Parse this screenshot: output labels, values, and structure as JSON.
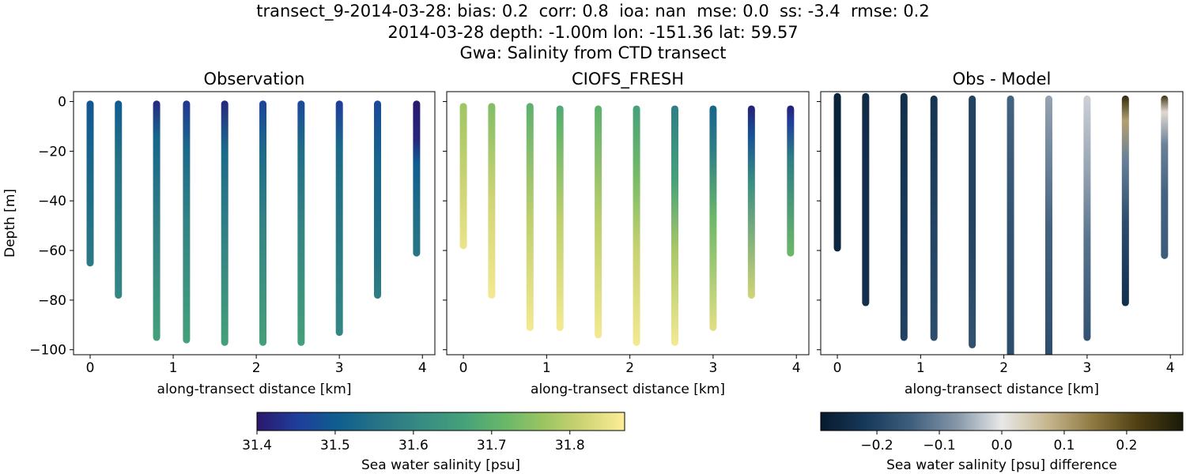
{
  "figure": {
    "title_lines": [
      "transect_9-2014-03-28: bias: 0.2  corr: 0.8  ioa: nan  mse: 0.0  ss: -3.4  rmse: 0.2",
      "2014-03-28 depth: -1.00m lon: -151.36 lat: 59.57",
      "Gwa: Salinity from CTD transect"
    ]
  },
  "chart_data": [
    {
      "type": "scatter",
      "title": "Observation",
      "xlabel": "along-transect distance [km]",
      "ylabel": "Depth [m]",
      "xlim": [
        -0.2,
        4.15
      ],
      "ylim": [
        -102,
        4
      ],
      "xticks": [
        0,
        1,
        2,
        3,
        4
      ],
      "yticks": [
        0,
        -20,
        -40,
        -60,
        -80,
        -100
      ],
      "colormap": "haline",
      "color_range": [
        31.4,
        31.87
      ],
      "profiles": [
        {
          "x": 0.0,
          "top": -1,
          "bottom": -65,
          "colors": [
            [
              0,
              31.49
            ],
            [
              0.3,
              31.52
            ],
            [
              1,
              31.57
            ]
          ]
        },
        {
          "x": 0.34,
          "top": -1,
          "bottom": -78,
          "colors": [
            [
              0,
              31.5
            ],
            [
              0.3,
              31.55
            ],
            [
              1,
              31.6
            ]
          ]
        },
        {
          "x": 0.8,
          "top": -1,
          "bottom": -95,
          "colors": [
            [
              0,
              31.42
            ],
            [
              0.15,
              31.52
            ],
            [
              0.5,
              31.58
            ],
            [
              1,
              31.66
            ]
          ]
        },
        {
          "x": 1.16,
          "top": -1,
          "bottom": -96,
          "colors": [
            [
              0,
              31.44
            ],
            [
              0.2,
              31.53
            ],
            [
              0.5,
              31.59
            ],
            [
              1,
              31.66
            ]
          ]
        },
        {
          "x": 1.62,
          "top": -1,
          "bottom": -97,
          "colors": [
            [
              0,
              31.42
            ],
            [
              0.2,
              31.53
            ],
            [
              0.5,
              31.58
            ],
            [
              1,
              31.66
            ]
          ]
        },
        {
          "x": 2.08,
          "top": -1,
          "bottom": -97,
          "colors": [
            [
              0,
              31.46
            ],
            [
              0.2,
              31.53
            ],
            [
              0.5,
              31.59
            ],
            [
              1,
              31.66
            ]
          ]
        },
        {
          "x": 2.54,
          "top": -1,
          "bottom": -97,
          "colors": [
            [
              0,
              31.47
            ],
            [
              0.2,
              31.54
            ],
            [
              0.5,
              31.59
            ],
            [
              1,
              31.66
            ]
          ]
        },
        {
          "x": 3.0,
          "top": -1,
          "bottom": -93,
          "colors": [
            [
              0,
              31.45
            ],
            [
              0.2,
              31.53
            ],
            [
              0.5,
              31.56
            ],
            [
              1,
              31.6
            ]
          ]
        },
        {
          "x": 3.46,
          "top": -1,
          "bottom": -78,
          "colors": [
            [
              0,
              31.47
            ],
            [
              0.3,
              31.52
            ],
            [
              0.8,
              31.55
            ],
            [
              1,
              31.58
            ]
          ]
        },
        {
          "x": 3.93,
          "top": -1,
          "bottom": -61,
          "colors": [
            [
              0,
              31.4
            ],
            [
              0.25,
              31.42
            ],
            [
              0.4,
              31.5
            ],
            [
              0.7,
              31.54
            ],
            [
              1,
              31.56
            ]
          ]
        }
      ]
    },
    {
      "type": "scatter",
      "title": "CIOFS_FRESH",
      "xlabel": "along-transect distance [km]",
      "ylabel": "",
      "xlim": [
        -0.2,
        4.15
      ],
      "ylim": [
        -102,
        4
      ],
      "xticks": [
        0,
        1,
        2,
        3,
        4
      ],
      "yticks": [
        0,
        -20,
        -40,
        -60,
        -80,
        -100
      ],
      "colormap": "haline",
      "color_range": [
        31.4,
        31.87
      ],
      "profiles": [
        {
          "x": 0.0,
          "top": -2,
          "bottom": -58,
          "colors": [
            [
              0,
              31.77
            ],
            [
              0.5,
              31.81
            ],
            [
              1,
              31.85
            ]
          ]
        },
        {
          "x": 0.34,
          "top": -2,
          "bottom": -78,
          "colors": [
            [
              0,
              31.74
            ],
            [
              0.5,
              31.82
            ],
            [
              1,
              31.86
            ]
          ]
        },
        {
          "x": 0.8,
          "top": -2,
          "bottom": -91,
          "colors": [
            [
              0,
              31.7
            ],
            [
              0.5,
              31.8
            ],
            [
              1,
              31.86
            ]
          ]
        },
        {
          "x": 1.16,
          "top": -3,
          "bottom": -91,
          "colors": [
            [
              0,
              31.68
            ],
            [
              0.1,
              31.71
            ],
            [
              0.5,
              31.8
            ],
            [
              1,
              31.86
            ]
          ]
        },
        {
          "x": 1.62,
          "top": -3,
          "bottom": -94,
          "colors": [
            [
              0,
              31.7
            ],
            [
              0.5,
              31.8
            ],
            [
              1,
              31.86
            ]
          ]
        },
        {
          "x": 2.08,
          "top": -3,
          "bottom": -97,
          "colors": [
            [
              0,
              31.66
            ],
            [
              0.3,
              31.73
            ],
            [
              0.6,
              31.81
            ],
            [
              1,
              31.86
            ]
          ]
        },
        {
          "x": 2.54,
          "top": -3,
          "bottom": -97,
          "colors": [
            [
              0,
              31.58
            ],
            [
              0.3,
              31.66
            ],
            [
              0.6,
              31.78
            ],
            [
              1,
              31.86
            ]
          ]
        },
        {
          "x": 3.0,
          "top": -3,
          "bottom": -91,
          "colors": [
            [
              0,
              31.52
            ],
            [
              0.2,
              31.58
            ],
            [
              0.5,
              31.72
            ],
            [
              1,
              31.84
            ]
          ]
        },
        {
          "x": 3.46,
          "top": -3,
          "bottom": -78,
          "colors": [
            [
              0,
              31.41
            ],
            [
              0.15,
              31.48
            ],
            [
              0.4,
              31.62
            ],
            [
              1,
              31.82
            ]
          ]
        },
        {
          "x": 3.93,
          "top": -3,
          "bottom": -61,
          "colors": [
            [
              0,
              31.41
            ],
            [
              0.1,
              31.45
            ],
            [
              0.35,
              31.58
            ],
            [
              1,
              31.72
            ]
          ]
        }
      ]
    },
    {
      "type": "scatter",
      "title": "Obs - Model",
      "xlabel": "along-transect distance [km]",
      "ylabel": "",
      "xlim": [
        -0.2,
        4.15
      ],
      "ylim": [
        -102,
        4
      ],
      "xticks": [
        0,
        1,
        2,
        3,
        4
      ],
      "yticks": [
        0,
        -20,
        -40,
        -60,
        -80,
        -100
      ],
      "colormap": "diff",
      "color_range": [
        -0.29,
        0.29
      ],
      "profiles": [
        {
          "x": 0.0,
          "top": 2,
          "bottom": -59,
          "colors": [
            [
              0,
              -0.27
            ],
            [
              0.5,
              -0.27
            ],
            [
              1,
              -0.26
            ]
          ]
        },
        {
          "x": 0.34,
          "top": 2,
          "bottom": -81,
          "colors": [
            [
              0,
              -0.25
            ],
            [
              0.5,
              -0.24
            ],
            [
              1,
              -0.24
            ]
          ]
        },
        {
          "x": 0.8,
          "top": 2,
          "bottom": -95,
          "colors": [
            [
              0,
              -0.24
            ],
            [
              0.5,
              -0.22
            ],
            [
              1,
              -0.2
            ]
          ]
        },
        {
          "x": 1.16,
          "top": 1,
          "bottom": -95,
          "colors": [
            [
              0,
              -0.23
            ],
            [
              0.5,
              -0.2
            ],
            [
              1,
              -0.18
            ]
          ]
        },
        {
          "x": 1.62,
          "top": 1,
          "bottom": -98,
          "colors": [
            [
              0,
              -0.2
            ],
            [
              0.5,
              -0.2
            ],
            [
              1,
              -0.17
            ]
          ]
        },
        {
          "x": 2.08,
          "top": 1,
          "bottom": -102,
          "colors": [
            [
              0,
              -0.14
            ],
            [
              0.5,
              -0.17
            ],
            [
              1,
              -0.18
            ]
          ]
        },
        {
          "x": 2.54,
          "top": 1,
          "bottom": -102,
          "colors": [
            [
              0,
              -0.06
            ],
            [
              0.5,
              -0.14
            ],
            [
              1,
              -0.18
            ]
          ]
        },
        {
          "x": 3.0,
          "top": 1,
          "bottom": -95,
          "colors": [
            [
              0,
              -0.02
            ],
            [
              0.3,
              -0.06
            ],
            [
              0.6,
              -0.12
            ],
            [
              1,
              -0.17
            ]
          ]
        },
        {
          "x": 3.46,
          "top": 1,
          "bottom": -81,
          "colors": [
            [
              0,
              0.26
            ],
            [
              0.12,
              0.1
            ],
            [
              0.3,
              -0.1
            ],
            [
              0.6,
              -0.18
            ],
            [
              1,
              -0.24
            ]
          ]
        },
        {
          "x": 3.93,
          "top": 1,
          "bottom": -62,
          "colors": [
            [
              0,
              0.24
            ],
            [
              0.1,
              0.02
            ],
            [
              0.3,
              -0.1
            ],
            [
              0.6,
              -0.14
            ],
            [
              1,
              -0.15
            ]
          ]
        }
      ]
    }
  ],
  "colorbars": [
    {
      "label": "Sea water salinity [psu]",
      "range": [
        31.4,
        31.87
      ],
      "ticks": [
        31.4,
        31.5,
        31.6,
        31.7,
        31.8
      ],
      "tick_labels": [
        "31.4",
        "31.5",
        "31.6",
        "31.7",
        "31.8"
      ],
      "colormap": "haline"
    },
    {
      "label": "Sea water salinity [psu] difference",
      "range": [
        -0.29,
        0.29
      ],
      "ticks": [
        -0.2,
        -0.1,
        0.0,
        0.1,
        0.2
      ],
      "tick_labels": [
        "−0.2",
        "−0.1",
        "0.0",
        "0.1",
        "0.2"
      ],
      "colormap": "diff"
    }
  ],
  "colormaps": {
    "haline": [
      "#2a186c",
      "#1f3e9c",
      "#0f5f8f",
      "#287485",
      "#378b84",
      "#44a07a",
      "#66b66a",
      "#9ac462",
      "#cfd474",
      "#fdee99"
    ],
    "diff": [
      "#071a2e",
      "#17395a",
      "#3f5f7d",
      "#8596a8",
      "#e8e8e8",
      "#c7b78f",
      "#8f7a43",
      "#4f4013",
      "#1a1a09"
    ]
  }
}
